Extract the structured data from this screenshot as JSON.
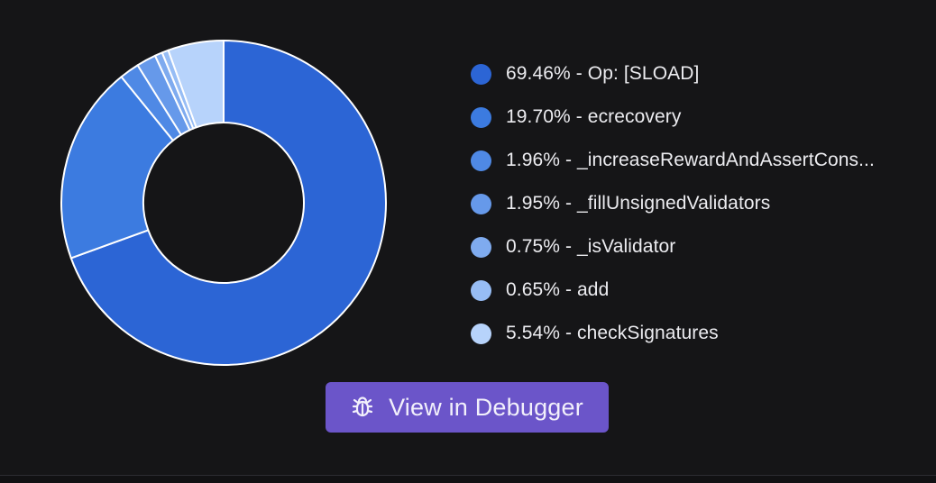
{
  "chart_data": {
    "type": "pie",
    "series": [
      {
        "label": "69.46% - Op: [SLOAD]",
        "percent": 69.46,
        "color": "#2c65d5"
      },
      {
        "label": "19.70% - ecrecovery",
        "percent": 19.7,
        "color": "#3c7be0"
      },
      {
        "label": "1.96% - _increaseRewardAndAssertCons...",
        "percent": 1.96,
        "color": "#4f89e5"
      },
      {
        "label": "1.95% - _fillUnsignedValidators",
        "percent": 1.95,
        "color": "#6699ea"
      },
      {
        "label": "0.75% - _isValidator",
        "percent": 0.75,
        "color": "#7fabef"
      },
      {
        "label": "0.65% - add",
        "percent": 0.65,
        "color": "#97bdf5"
      },
      {
        "label": "5.54% - checkSignatures",
        "percent": 5.54,
        "color": "#b7d3fb"
      }
    ],
    "legend_position": "right",
    "donut": true
  },
  "actions": {
    "debugger_label": "View in Debugger"
  },
  "icons": {
    "debugger": "bug-icon"
  },
  "colors": {
    "background": "#151517",
    "button": "#6b55c9",
    "slice_border": "#ffffff"
  }
}
